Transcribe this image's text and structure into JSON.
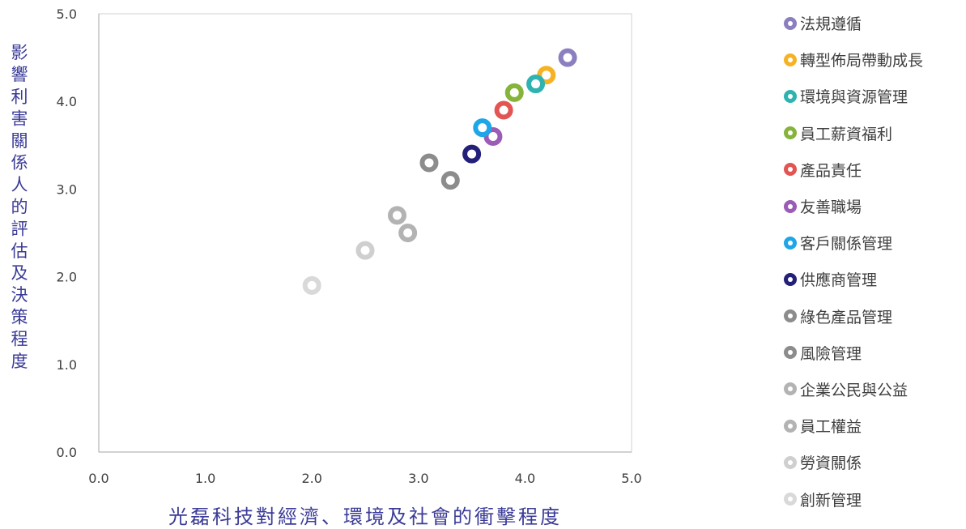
{
  "chart_data": {
    "type": "scatter",
    "xlabel": "光磊科技對經濟、環境及社會的衝擊程度",
    "ylabel": "影響利害關係人的評估及決策程度",
    "xlim": [
      0,
      5
    ],
    "ylim": [
      0,
      5
    ],
    "xticks": [
      "0.0",
      "1.0",
      "2.0",
      "3.0",
      "4.0",
      "5.0"
    ],
    "yticks": [
      "0.0",
      "1.0",
      "2.0",
      "3.0",
      "4.0",
      "5.0"
    ],
    "grid": false,
    "legend_position": "right",
    "series": [
      {
        "name": "法規遵循",
        "x": 4.4,
        "y": 4.5,
        "color": "#8c7fc0"
      },
      {
        "name": "轉型佈局帶動成長",
        "x": 4.2,
        "y": 4.3,
        "color": "#f5b324"
      },
      {
        "name": "環境與資源管理",
        "x": 4.1,
        "y": 4.2,
        "color": "#2eb3b0"
      },
      {
        "name": "員工薪資福利",
        "x": 3.9,
        "y": 4.1,
        "color": "#86b33a"
      },
      {
        "name": "產品責任",
        "x": 3.8,
        "y": 3.9,
        "color": "#e25552"
      },
      {
        "name": "友善職場",
        "x": 3.7,
        "y": 3.6,
        "color": "#9b5cb5"
      },
      {
        "name": "客戶關係管理",
        "x": 3.6,
        "y": 3.7,
        "color": "#1fa6e8"
      },
      {
        "name": "供應商管理",
        "x": 3.5,
        "y": 3.4,
        "color": "#23207a"
      },
      {
        "name": "綠色產品管理",
        "x": 3.1,
        "y": 3.3,
        "color": "#8c8c8c"
      },
      {
        "name": "風險管理",
        "x": 3.3,
        "y": 3.1,
        "color": "#8c8c8c"
      },
      {
        "name": "企業公民與公益",
        "x": 2.8,
        "y": 2.7,
        "color": "#b3b3b3"
      },
      {
        "name": "員工權益",
        "x": 2.9,
        "y": 2.5,
        "color": "#b3b3b3"
      },
      {
        "name": "勞資關係",
        "x": 2.5,
        "y": 2.3,
        "color": "#cfcfcf"
      },
      {
        "name": "創新管理",
        "x": 2.0,
        "y": 1.9,
        "color": "#d9d9d9"
      }
    ]
  }
}
